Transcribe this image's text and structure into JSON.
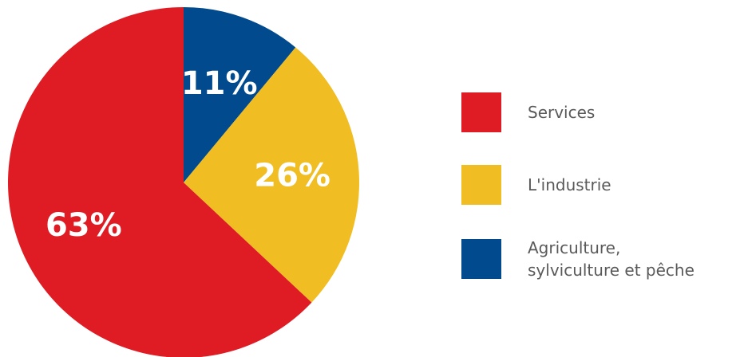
{
  "chart_data": {
    "type": "pie",
    "slices": [
      {
        "label": "Agriculture,\nsylviculture et pêche",
        "value": 11,
        "display": "11%",
        "color": "#014a8d"
      },
      {
        "label": "L'industrie",
        "value": 26,
        "display": "26%",
        "color": "#f0bd22"
      },
      {
        "label": "Services",
        "value": 63,
        "display": "63%",
        "color": "#df1c24"
      }
    ],
    "legend_order": [
      "Services",
      "L'industrie",
      "Agriculture,\nsylviculture et pêche"
    ],
    "start_angle": "12 o'clock",
    "direction": "clockwise",
    "legend_position": "right"
  }
}
